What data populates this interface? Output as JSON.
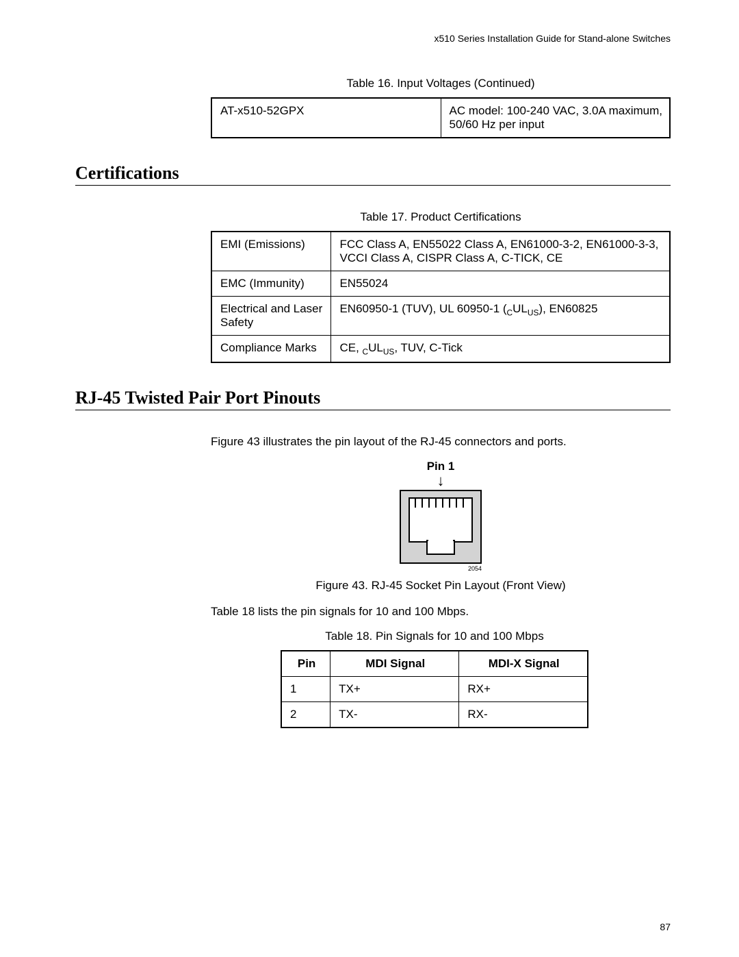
{
  "header": {
    "text": "x510 Series Installation Guide for Stand-alone Switches"
  },
  "table16": {
    "caption": "Table 16. Input Voltages (Continued)",
    "rows": [
      {
        "c1": "AT-x510-52GPX",
        "c2": "AC model: 100-240 VAC, 3.0A maximum, 50/60 Hz per input"
      }
    ],
    "col_widths": [
      "50%",
      "50%"
    ]
  },
  "section_cert": {
    "title": "Certifications"
  },
  "table17": {
    "caption": "Table 17. Product Certifications",
    "rows": [
      {
        "c1": "EMI (Emissions)",
        "c2": "FCC Class A, EN55022 Class A, EN61000-3-2, EN61000-3-3, VCCI Class A, CISPR Class A, C-TICK, CE"
      },
      {
        "c1": "EMC (Immunity)",
        "c2": "EN55024"
      },
      {
        "c1": "Electrical and Laser Safety",
        "c2_html": "EN60950-1 (TUV), UL 60950-1 (<sub>C</sub>UL<sub>US</sub>), EN60825"
      },
      {
        "c1": "Compliance Marks",
        "c2_html": "CE, <sub>C</sub>UL<sub>US</sub>, TUV, C-Tick"
      }
    ],
    "col_widths": [
      "50%",
      "50%"
    ]
  },
  "section_rj45": {
    "title": "RJ-45 Twisted Pair Port Pinouts"
  },
  "rj45": {
    "intro": "Figure 43 illustrates the pin layout of the RJ-45 connectors and ports.",
    "pin_label": "Pin 1",
    "fig_caption": "Figure 43. RJ-45 Socket Pin Layout (Front View)",
    "img_number": "2054",
    "diagram": {
      "bg_color": "#d3d3d3",
      "border_color": "#000000",
      "inner_color": "#ffffff",
      "pins": 8
    }
  },
  "table18": {
    "intro": "Table 18 lists the pin signals for 10 and 100 Mbps.",
    "caption": "Table 18. Pin Signals for 10 and 100 Mbps",
    "headers": [
      "Pin",
      "MDI Signal",
      "MDI-X Signal"
    ],
    "rows": [
      {
        "pin": "1",
        "mdi": "TX+",
        "mdix": "RX+"
      },
      {
        "pin": "2",
        "mdi": "TX-",
        "mdix": "RX-"
      }
    ],
    "col_widths": [
      "16%",
      "42%",
      "42%"
    ]
  },
  "page_number": "87",
  "colors": {
    "text": "#000000",
    "bg": "#ffffff",
    "rule": "#000000"
  },
  "fonts": {
    "body_family": "Arial",
    "body_size_pt": 12,
    "heading_family": "Times New Roman",
    "heading_size_pt": 20
  }
}
